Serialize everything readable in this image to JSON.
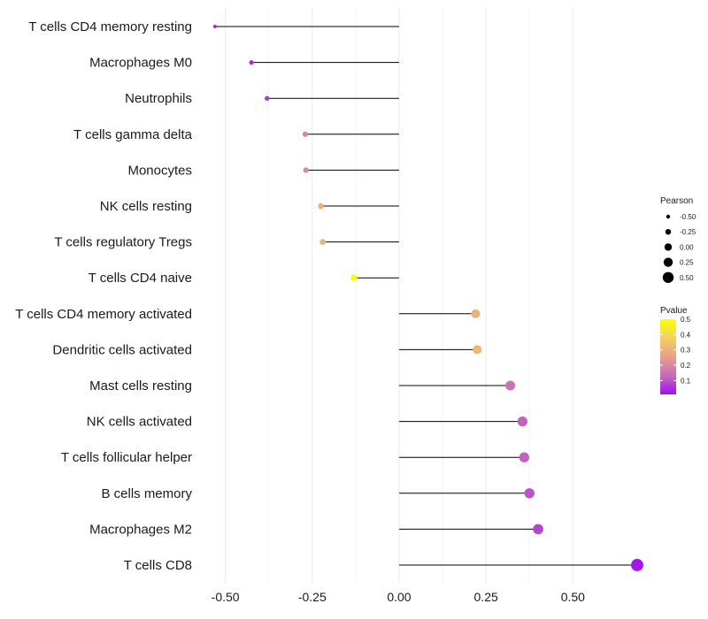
{
  "chart_data": {
    "type": "lollipop",
    "title": "",
    "xlabel": "",
    "ylabel": "",
    "xlim": [
      -0.55,
      0.68
    ],
    "xticks": [
      -0.5,
      -0.25,
      0.0,
      0.25,
      0.5
    ],
    "xtick_labels": [
      "-0.50",
      "-0.25",
      "0.00",
      "0.25",
      "0.50"
    ],
    "grid": "vertical",
    "categories": [
      "T cells CD4 memory resting",
      "Macrophages M0",
      "Neutrophils",
      "T cells gamma delta",
      "Monocytes",
      "NK cells resting",
      "T cells regulatory  Tregs ",
      "T cells CD4 naive",
      "T cells CD4 memory activated",
      "Dendritic cells activated",
      "Mast cells resting",
      "NK cells activated",
      "T cells follicular helper",
      "B cells memory",
      "Macrophages M2",
      "T cells CD8"
    ],
    "pearson": [
      -0.53,
      -0.425,
      -0.38,
      -0.27,
      -0.268,
      -0.225,
      -0.22,
      -0.13,
      0.22,
      0.225,
      0.32,
      0.355,
      0.36,
      0.375,
      0.4,
      0.685
    ],
    "pvalue": [
      0.05,
      0.04,
      0.06,
      0.2,
      0.2,
      0.3,
      0.3,
      0.5,
      0.3,
      0.32,
      0.15,
      0.12,
      0.12,
      0.1,
      0.08,
      0.02
    ],
    "size_legend": {
      "title": "Pearson",
      "values": [
        -0.5,
        -0.25,
        0.0,
        0.25,
        0.5
      ],
      "labels": [
        "-0.50",
        "-0.25",
        "0.00",
        "0.25",
        "0.50"
      ]
    },
    "color_legend": {
      "title": "Pvalue",
      "range": [
        0.01,
        0.5
      ],
      "ticks": [
        0.1,
        0.2,
        0.3,
        0.4,
        0.5
      ],
      "labels": [
        "0.1",
        "0.2",
        "0.3",
        "0.4",
        "0.5"
      ],
      "colors": [
        "#a010f0",
        "#c46bb8",
        "#e8a08a",
        "#f5d060",
        "#ffff00"
      ]
    },
    "legend_position": "right"
  }
}
